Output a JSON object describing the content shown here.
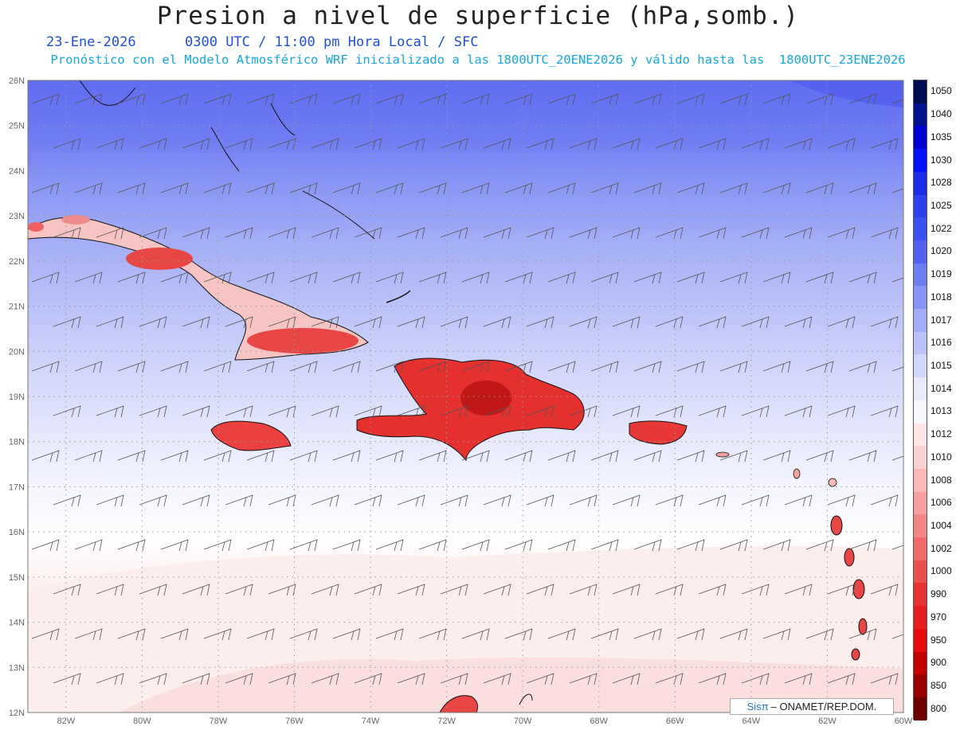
{
  "header": {
    "title": "Presion a nivel de superficie (hPa,somb.)",
    "date": "23-Ene-2026",
    "time_info": "0300 UTC / 11:00 pm Hora Local / SFC",
    "forecast_note": "Pronóstico con el Modelo Atmosférico WRF inicializado a las 1800UTC_20ENE2026 y válido hasta las  1800UTC_23ENE2026"
  },
  "map": {
    "lat_labels": [
      "26N",
      "25N",
      "24N",
      "23N",
      "22N",
      "21N",
      "20N",
      "19N",
      "18N",
      "17N",
      "16N",
      "15N",
      "14N",
      "13N",
      "12N"
    ],
    "lon_labels": [
      "82W",
      "80W",
      "78W",
      "76W",
      "74W",
      "72W",
      "70W",
      "68W",
      "66W",
      "64W",
      "62W",
      "60W"
    ],
    "lat_range": [
      12,
      26
    ],
    "lon_range": [
      -83,
      -60
    ],
    "grid": "dotted"
  },
  "legend": {
    "labels": [
      "1050",
      "1040",
      "1035",
      "1030",
      "1028",
      "1025",
      "1022",
      "1020",
      "1019",
      "1018",
      "1017",
      "1016",
      "1015",
      "1014",
      "1013",
      "1012",
      "1010",
      "1008",
      "1006",
      "1004",
      "1002",
      "1000",
      "990",
      "970",
      "950",
      "900",
      "850",
      "800"
    ],
    "colors": [
      "#000a50",
      "#00128e",
      "#0000d2",
      "#0012ff",
      "#1a2ce8",
      "#2c42ee",
      "#3b50f0",
      "#5562ef",
      "#6e7cf2",
      "#8894f4",
      "#a3acf6",
      "#bbc2f8",
      "#d2d6fa",
      "#e8eafc",
      "#f7f7fe",
      "#fde6e6",
      "#fcd1d1",
      "#f9b7b7",
      "#f79e9e",
      "#f48585",
      "#f06a6a",
      "#ec4e4e",
      "#e83232",
      "#e61d1d",
      "#e60a0a",
      "#c40000",
      "#9a0000",
      "#6e0000"
    ]
  },
  "credit": {
    "brand": "Sisπ",
    "org": "– ONAMET/REP.DOM."
  }
}
